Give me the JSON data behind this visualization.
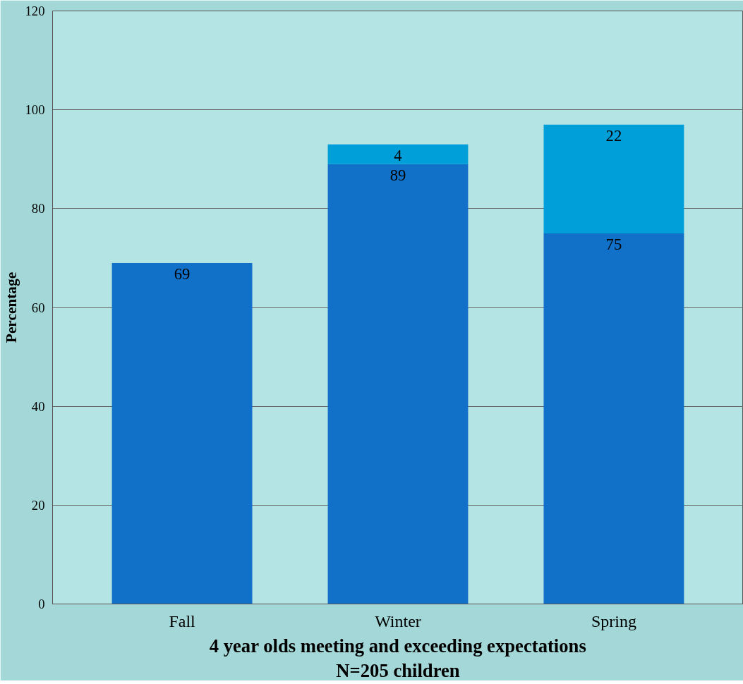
{
  "chart_data": {
    "type": "bar",
    "stacked": true,
    "categories": [
      "Fall",
      "Winter",
      "Spring"
    ],
    "series": [
      {
        "color": "#1170c8",
        "values": [
          69,
          89,
          75
        ]
      },
      {
        "color": "#009fda",
        "values": [
          null,
          4,
          22
        ]
      }
    ],
    "ylim": [
      0,
      120
    ],
    "yticks": [
      0,
      20,
      40,
      60,
      80,
      100,
      120
    ],
    "grid": "y",
    "data_labels": true,
    "ylabel": "Percentage",
    "xlabel": "4 year olds meeting and exceeding expectations",
    "annotations": [
      "N=205 children"
    ]
  }
}
